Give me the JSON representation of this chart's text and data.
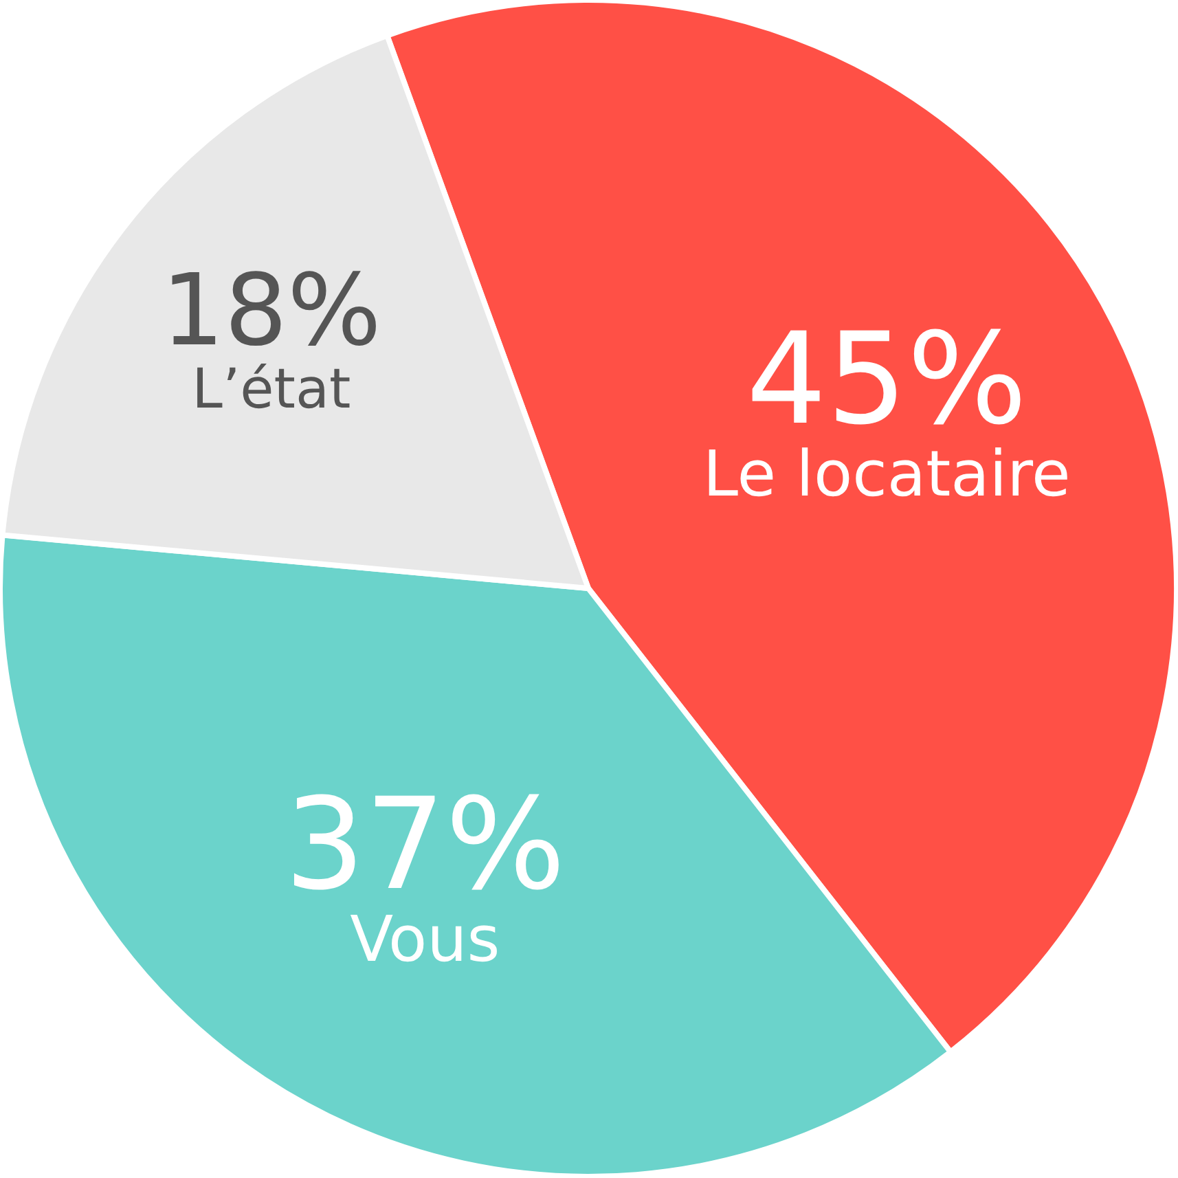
{
  "chart_data": {
    "type": "pie",
    "categories": [
      "Le locataire",
      "Vous",
      "L’état"
    ],
    "values": [
      45,
      37,
      18
    ],
    "colors": [
      "#ff5046",
      "#6bd3cb",
      "#e8e8e8"
    ],
    "value_labels": [
      "45%",
      "37%",
      "18%"
    ],
    "legend": false
  }
}
